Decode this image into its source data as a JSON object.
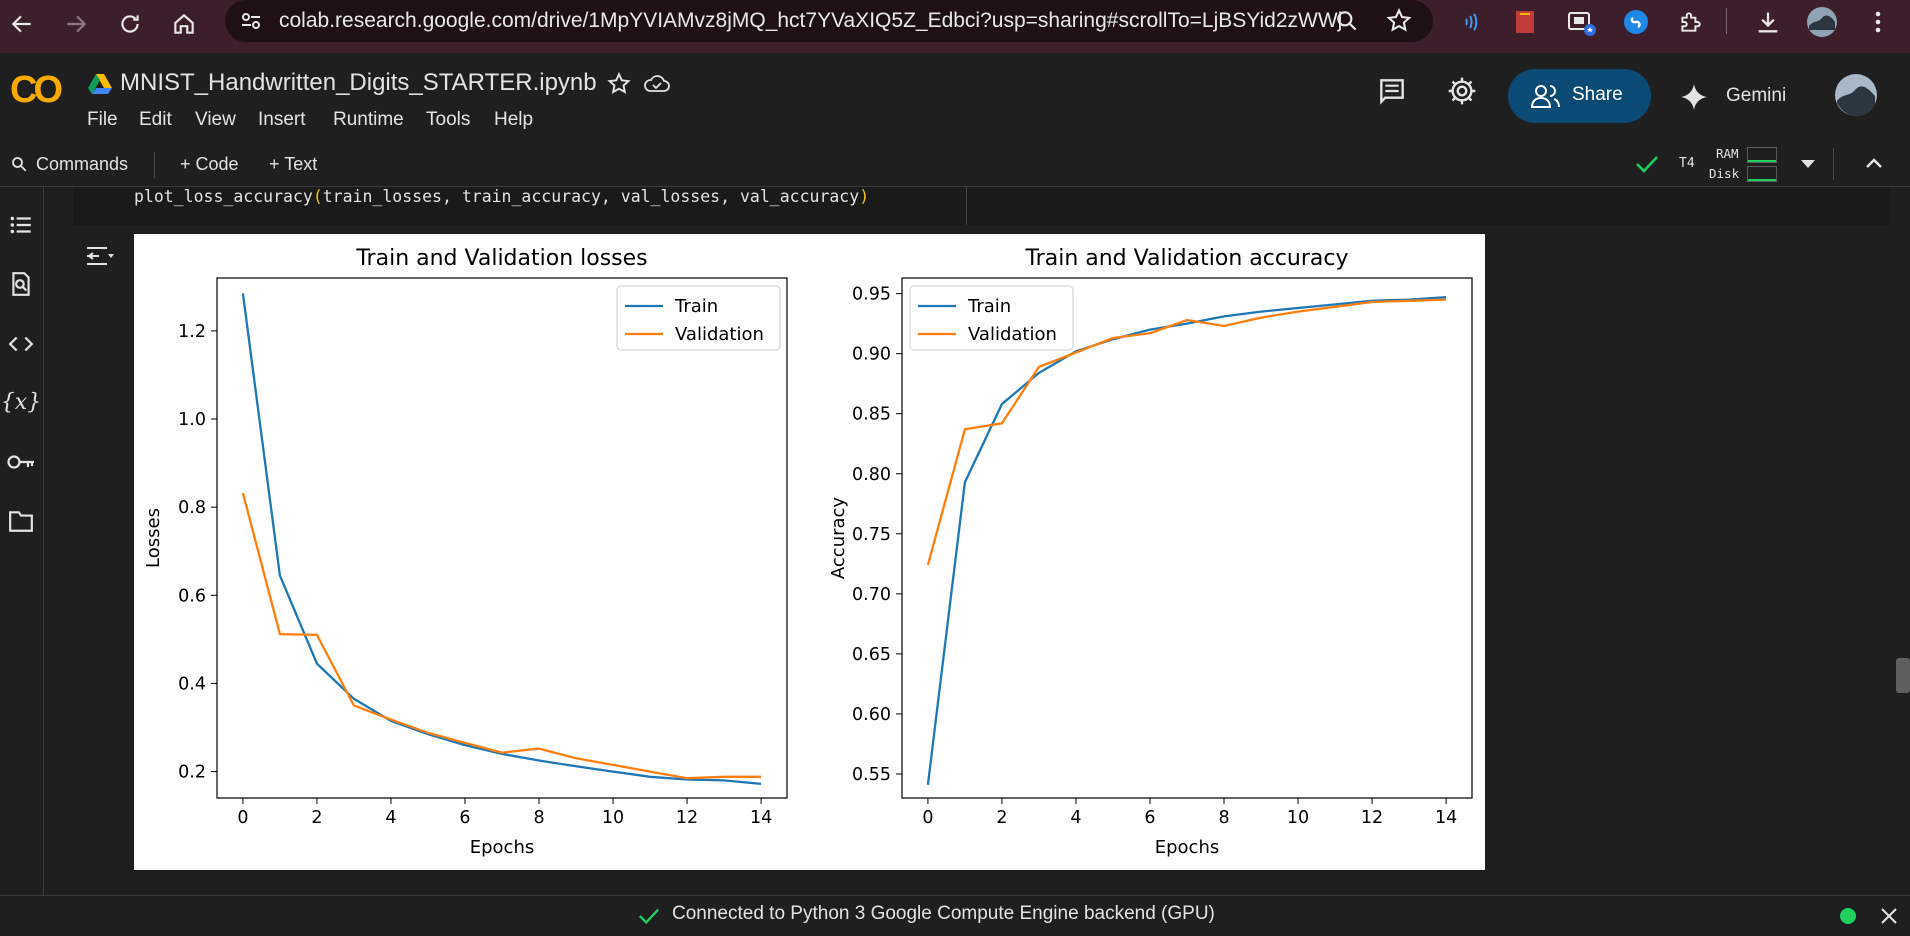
{
  "browser": {
    "url": "colab.research.google.com/drive/1MpYVIAMvz8jMQ_hct7YVaXIQ5Z_Edbci?usp=sharing#scrollTo=LjBSYid2zWWj"
  },
  "header": {
    "logo": "CO",
    "notebook_title": "MNIST_Handwritten_Digits_STARTER.ipynb",
    "menu": [
      "File",
      "Edit",
      "View",
      "Insert",
      "Runtime",
      "Tools",
      "Help"
    ],
    "share_label": "Share",
    "gemini_label": "Gemini"
  },
  "toolbar": {
    "commands_label": "Commands",
    "code_label": "+ Code",
    "text_label": "+ Text",
    "runtime_type": "T4",
    "ram_label": "RAM",
    "disk_label": "Disk"
  },
  "cell": {
    "code_fn": "plot_loss_accuracy",
    "code_args": "train_losses, train_accuracy, val_losses, val_accuracy"
  },
  "status": {
    "text": "Connected to Python 3 Google Compute Engine backend (GPU)"
  },
  "colors": {
    "train": "#1f77b4",
    "validation": "#ff7f0e",
    "accent_green": "#1fd05c",
    "share_bg": "#0b4a75"
  },
  "chart_data": [
    {
      "type": "line",
      "title": "Train and Validation losses",
      "xlabel": "Epochs",
      "ylabel": "Losses",
      "x": [
        0,
        1,
        2,
        3,
        4,
        5,
        6,
        7,
        8,
        9,
        10,
        11,
        12,
        13,
        14
      ],
      "xticks": [
        0,
        2,
        4,
        6,
        8,
        10,
        12,
        14
      ],
      "yticks": [
        0.2,
        0.4,
        0.6,
        0.8,
        1.0,
        1.2
      ],
      "ytick_labels": [
        "0.2",
        "0.4",
        "0.6",
        "0.8",
        "1.0",
        "1.2"
      ],
      "xlim": [
        -0.7,
        14.7
      ],
      "ylim": [
        0.14,
        1.32
      ],
      "legend": "upper right",
      "series": [
        {
          "name": "Train",
          "values": [
            1.285,
            0.645,
            0.445,
            0.365,
            0.315,
            0.285,
            0.26,
            0.24,
            0.225,
            0.212,
            0.2,
            0.188,
            0.182,
            0.18,
            0.172
          ]
        },
        {
          "name": "Validation",
          "values": [
            0.832,
            0.512,
            0.51,
            0.35,
            0.318,
            0.288,
            0.265,
            0.243,
            0.252,
            0.23,
            0.215,
            0.2,
            0.185,
            0.188,
            0.188
          ]
        }
      ]
    },
    {
      "type": "line",
      "title": "Train and Validation accuracy",
      "xlabel": "Epochs",
      "ylabel": "Accuracy",
      "x": [
        0,
        1,
        2,
        3,
        4,
        5,
        6,
        7,
        8,
        9,
        10,
        11,
        12,
        13,
        14
      ],
      "xticks": [
        0,
        2,
        4,
        6,
        8,
        10,
        12,
        14
      ],
      "yticks": [
        0.55,
        0.6,
        0.65,
        0.7,
        0.75,
        0.8,
        0.85,
        0.9,
        0.95
      ],
      "ytick_labels": [
        "0.55",
        "0.60",
        "0.65",
        "0.70",
        "0.75",
        "0.80",
        "0.85",
        "0.90",
        "0.95"
      ],
      "xlim": [
        -0.7,
        14.7
      ],
      "ylim": [
        0.53,
        0.963
      ],
      "legend": "upper left",
      "series": [
        {
          "name": "Train",
          "values": [
            0.541,
            0.793,
            0.858,
            0.884,
            0.902,
            0.912,
            0.92,
            0.925,
            0.931,
            0.935,
            0.938,
            0.941,
            0.944,
            0.945,
            0.947
          ]
        },
        {
          "name": "Validation",
          "values": [
            0.724,
            0.837,
            0.842,
            0.889,
            0.901,
            0.913,
            0.917,
            0.928,
            0.923,
            0.93,
            0.935,
            0.939,
            0.943,
            0.944,
            0.945
          ]
        }
      ]
    }
  ]
}
